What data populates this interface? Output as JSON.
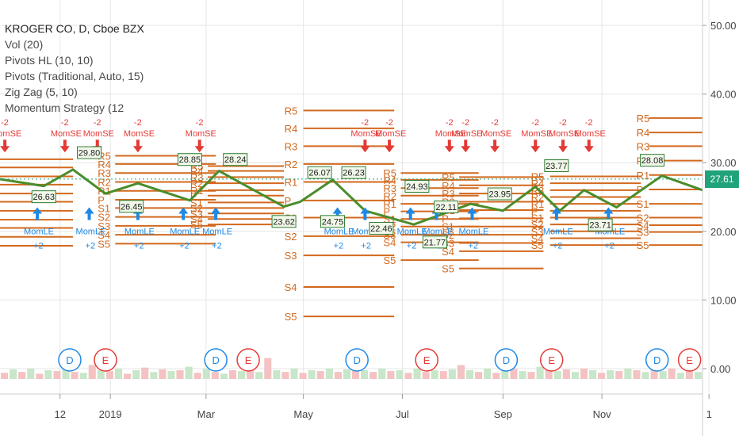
{
  "chart_data": {
    "type": "line",
    "symbol_title": "KROGER CO, D, Cboe BZX",
    "indicators": [
      "Vol (20)",
      "Pivots HL (10, 10)",
      "Pivots (Traditional, Auto, 15)",
      "Zig Zag (5, 10)",
      "Momentum Strategy (12"
    ],
    "last_price": "27.61",
    "y_ticks": [
      "50.00",
      "40.00",
      "30.00",
      "20.00",
      "10.00",
      "0.00"
    ],
    "y_tick_values": [
      50,
      40,
      30,
      20,
      10,
      0
    ],
    "ylim": [
      -2.5,
      54
    ],
    "x_ticks": [
      "12",
      "2019",
      "Mar",
      "May",
      "Jul",
      "Sep",
      "Nov",
      "1"
    ],
    "x_tick_days": [
      12,
      43,
      102,
      162,
      223,
      285,
      346,
      412
    ],
    "xlim": [
      -25,
      408
    ],
    "zigzag": {
      "x": [
        -25,
        2,
        20,
        40,
        60,
        92,
        110,
        150,
        160,
        180,
        200,
        230,
        265,
        285,
        305,
        320,
        335,
        355,
        383,
        408
      ],
      "y": [
        27.6,
        26.6,
        29.0,
        25.5,
        27.0,
        24.5,
        28.8,
        23.6,
        24.3,
        27.5,
        23.0,
        21.0,
        24.0,
        23.0,
        26.5,
        23.0,
        26.0,
        23.5,
        28.1,
        26.0
      ]
    },
    "price_labels": [
      {
        "text": "26.63",
        "x": 2,
        "y": 26.6,
        "pos": "below"
      },
      {
        "text": "29.80",
        "x": 30,
        "y": 29.9,
        "pos": "above"
      },
      {
        "text": "26.45",
        "x": 56,
        "y": 25.2,
        "pos": "below"
      },
      {
        "text": "28.85",
        "x": 92,
        "y": 28.9,
        "pos": "above"
      },
      {
        "text": "28.24",
        "x": 120,
        "y": 28.9,
        "pos": "above"
      },
      {
        "text": "23.62",
        "x": 150,
        "y": 23.0,
        "pos": "below"
      },
      {
        "text": "26.07",
        "x": 172,
        "y": 27.0,
        "pos": "above"
      },
      {
        "text": "24.75",
        "x": 180,
        "y": 23.0,
        "pos": "below"
      },
      {
        "text": "26.23",
        "x": 193,
        "y": 27.0,
        "pos": "above"
      },
      {
        "text": "24.93",
        "x": 232,
        "y": 25.0,
        "pos": "above"
      },
      {
        "text": "22.46",
        "x": 210,
        "y": 22.0,
        "pos": "below"
      },
      {
        "text": "22.11",
        "x": 250,
        "y": 22.0,
        "pos": "above"
      },
      {
        "text": "23.95",
        "x": 283,
        "y": 23.9,
        "pos": "above"
      },
      {
        "text": "21.77",
        "x": 243,
        "y": 20.0,
        "pos": "below"
      },
      {
        "text": "23.77",
        "x": 318,
        "y": 28.0,
        "pos": "above"
      },
      {
        "text": "23.71",
        "x": 345,
        "y": 22.5,
        "pos": "below"
      },
      {
        "text": "28.08",
        "x": 377,
        "y": 28.8,
        "pos": "above"
      }
    ],
    "pivot_blocks": [
      {
        "x0": -25,
        "x1": 20,
        "levels": [
          30.5,
          29.3,
          28.0,
          26.8,
          25.5,
          24.3,
          23.0,
          21.7,
          20.5,
          19.2,
          17.9
        ]
      },
      {
        "x0": 46,
        "x1": 108,
        "labels_x": 46,
        "levels": [
          31.0,
          29.8,
          28.5,
          27.2,
          25.9,
          24.6,
          23.4,
          22.1,
          20.8,
          19.5,
          18.2
        ],
        "labels": [
          "R5",
          "R4",
          "R3",
          "R2",
          "R1",
          "P",
          "S1",
          "S2",
          "S3",
          "S4",
          "S5"
        ]
      },
      {
        "x0": 103,
        "x1": 150,
        "labels_x": 103,
        "levels": [
          29.5,
          28.8,
          27.9,
          27.0,
          26.0,
          25.2,
          24.2,
          23.4,
          22.6,
          21.8,
          21.0
        ],
        "labels": [
          "R5",
          "R4",
          "R3",
          "R2",
          "R1",
          "P",
          "S1",
          "S2",
          "S3",
          "S4",
          "S5"
        ]
      },
      {
        "x0": 162,
        "x1": 218,
        "labels_x": 161,
        "levels": [
          37.6,
          35.0,
          32.4,
          29.8,
          27.2,
          24.5,
          22.0,
          19.3,
          16.5,
          11.9,
          7.6
        ],
        "labels": [
          "R5",
          "R4",
          "R3",
          "R2",
          "R1",
          "P",
          "S1",
          "S2",
          "S3",
          "S4",
          "S5"
        ]
      },
      {
        "x0": 222,
        "x1": 270,
        "labels_x": 222,
        "levels": [
          28.5,
          27.5,
          26.3,
          25.2,
          24.0,
          22.9,
          21.8,
          20.7,
          19.5,
          18.4,
          15.8
        ],
        "labels": [
          "R5",
          "R4",
          "R3",
          "R2",
          "R1",
          "P",
          "S1",
          "S2",
          "S3",
          "S4",
          "S5"
        ]
      },
      {
        "x0": 258,
        "x1": 310,
        "labels_x": 258,
        "levels": [
          27.9,
          26.7,
          25.5,
          24.3,
          23.1,
          21.9,
          20.7,
          19.5,
          18.3,
          17.1,
          14.6
        ],
        "labels": [
          "R5",
          "R4",
          "R3",
          "R2",
          "R1",
          "P",
          "S1",
          "S2",
          "S3",
          "S4",
          "S5"
        ]
      },
      {
        "x0": 314,
        "x1": 370,
        "labels_x": 313,
        "levels": [
          28.0,
          27.0,
          26.0,
          25.0,
          24.0,
          23.0,
          22.0,
          21.0,
          20.0,
          19.0,
          18.0
        ],
        "labels": [
          "R5",
          "R4",
          "R3",
          "R2",
          "R1",
          "P",
          "S1",
          "S2",
          "S3",
          "S4",
          "S5"
        ]
      },
      {
        "x0": 375,
        "x1": 408,
        "labels_x": 378,
        "levels": [
          36.5,
          34.4,
          32.4,
          30.3,
          28.2,
          26.1,
          24.0,
          22.0,
          19.9,
          20.9,
          18.0
        ],
        "labels": [
          "R5",
          "R4",
          "R3",
          "R2",
          "R1",
          "P",
          "S1",
          "S2",
          "S3",
          "S4",
          "S5"
        ]
      }
    ],
    "signals": {
      "long_label": "MomLE",
      "short_label": "MomSE",
      "qty_long": "+2",
      "qty_short": "-2",
      "long_x": [
        -2,
        30,
        60,
        88,
        108,
        183,
        200,
        228,
        244,
        266,
        318,
        350
      ],
      "short_x": [
        -22,
        15,
        35,
        60,
        98,
        200,
        215,
        252,
        262,
        280,
        305,
        322,
        338
      ]
    },
    "volume": {
      "values": [
        0.35,
        0.55,
        0.4,
        0.6,
        0.3,
        0.5,
        0.45,
        0.7,
        0.4,
        0.35,
        0.8,
        0.5,
        0.45,
        0.6,
        0.3,
        0.5,
        0.65,
        0.4,
        0.55,
        0.45,
        0.5,
        0.7,
        0.35,
        0.6,
        0.4,
        0.3,
        0.5,
        0.45,
        0.55,
        0.4,
        1.2,
        0.5,
        0.4,
        0.6,
        0.35,
        0.5,
        0.45,
        0.6,
        0.4,
        0.55,
        0.7,
        0.5,
        0.4,
        0.6,
        0.45,
        0.5,
        0.35,
        0.6,
        0.4,
        0.5,
        0.45,
        0.55,
        0.8,
        0.5,
        0.4,
        0.6,
        0.35,
        0.5,
        0.6,
        0.45,
        0.4,
        0.7,
        0.5,
        0.45,
        0.55,
        0.4,
        0.6,
        0.5,
        0.35,
        0.5,
        0.45,
        0.6,
        0.5,
        0.4,
        0.55,
        0.45,
        0.6,
        0.35,
        0.5,
        0.4
      ],
      "colors": [
        "#f4c2c2",
        "#c8e6c9"
      ]
    },
    "events": [
      {
        "kind": "D",
        "x": 18
      },
      {
        "kind": "E",
        "x": 40
      },
      {
        "kind": "D",
        "x": 108
      },
      {
        "kind": "E",
        "x": 128
      },
      {
        "kind": "D",
        "x": 195
      },
      {
        "kind": "E",
        "x": 238
      },
      {
        "kind": "D",
        "x": 287
      },
      {
        "kind": "E",
        "x": 315
      },
      {
        "kind": "D",
        "x": 380
      },
      {
        "kind": "E",
        "x": 400
      }
    ],
    "colors": {
      "zigzag": "#4a8c2a",
      "pivot": "#d2691e",
      "long": "#1e88e5",
      "short": "#e53935",
      "label_border": "#2e7d32",
      "label_bg": "#f1f8e9",
      "grid": "#e6e6e6",
      "price_line": "#20a27a"
    }
  }
}
